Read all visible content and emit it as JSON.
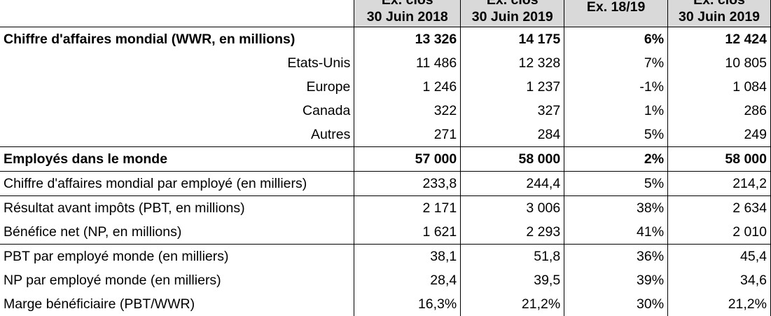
{
  "header": {
    "col1": {
      "line1": "Ex. clos",
      "line2": "30 Juin 2018"
    },
    "col2": {
      "line1": "Ex. clos",
      "line2": "30 Juin 2019"
    },
    "col3": {
      "line1": "Ex. 18/19"
    },
    "col4": {
      "line1": "Ex. clos",
      "line2": "30 Juin 2019"
    }
  },
  "rows": [
    {
      "label": "Chiffre d'affaires mondial (WWR, en millions)",
      "v1": "13 326",
      "v2": "14 175",
      "v3": "6%",
      "v4": "12 424"
    },
    {
      "label": "Etats-Unis",
      "v1": "11 486",
      "v2": "12 328",
      "v3": "7%",
      "v4": "10 805"
    },
    {
      "label": "Europe",
      "v1": "1 246",
      "v2": "1 237",
      "v3": "-1%",
      "v4": "1 084"
    },
    {
      "label": "Canada",
      "v1": "322",
      "v2": "327",
      "v3": "1%",
      "v4": "286"
    },
    {
      "label": "Autres",
      "v1": "271",
      "v2": "284",
      "v3": "5%",
      "v4": "249"
    },
    {
      "label": "Employés dans le monde",
      "v1": "57 000",
      "v2": "58 000",
      "v3": "2%",
      "v4": "58 000"
    },
    {
      "label": "Chiffre d'affaires mondial par employé (en milliers)",
      "v1": "233,8",
      "v2": "244,4",
      "v3": "5%",
      "v4": "214,2"
    },
    {
      "label": "Résultat avant impôts (PBT, en millions)",
      "v1": "2 171",
      "v2": "3 006",
      "v3": "38%",
      "v4": "2 634"
    },
    {
      "label": "Bénéfice net (NP, en millions)",
      "v1": "1 621",
      "v2": "2 293",
      "v3": "41%",
      "v4": "2 010"
    },
    {
      "label": "PBT par employé monde (en milliers)",
      "v1": "38,1",
      "v2": "51,8",
      "v3": "36%",
      "v4": "45,4"
    },
    {
      "label": "NP par employé monde (en milliers)",
      "v1": "28,4",
      "v2": "39,5",
      "v3": "39%",
      "v4": "34,6"
    },
    {
      "label": "Marge bénéficiaire (PBT/WWR)",
      "v1": "16,3%",
      "v2": "21,2%",
      "v3": "30%",
      "v4": "21,2%"
    }
  ]
}
